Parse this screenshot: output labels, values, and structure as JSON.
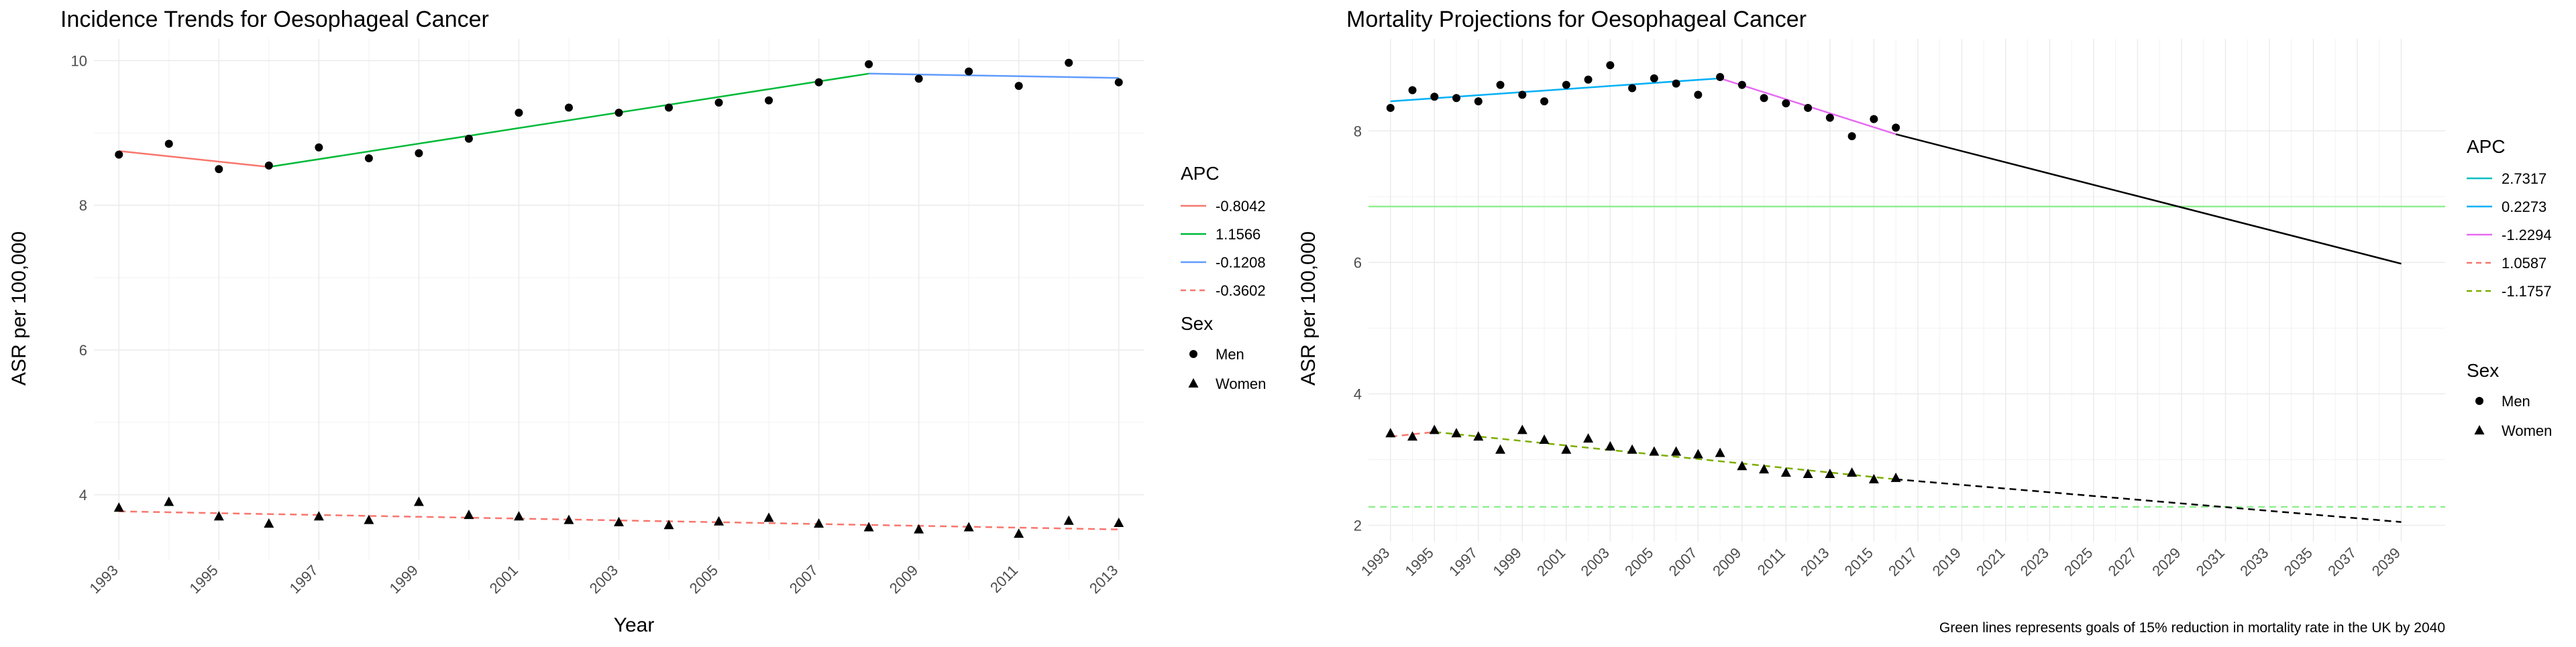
{
  "chart_data": [
    {
      "type": "scatter",
      "title": "Incidence Trends for Oesophageal Cancer",
      "xlabel": "Year",
      "ylabel": "ASR per 100,000",
      "xlim": [
        1992.5,
        2013.5
      ],
      "ylim": [
        3.1,
        10.3
      ],
      "x_ticks": [
        1993,
        1995,
        1997,
        1999,
        2001,
        2003,
        2005,
        2007,
        2009,
        2011,
        2013
      ],
      "y_ticks": [
        4,
        6,
        8,
        10
      ],
      "grid": true,
      "points": [
        {
          "sex": "Men",
          "shape": "circle",
          "x": [
            1993,
            1994,
            1995,
            1996,
            1997,
            1998,
            1999,
            2000,
            2001,
            2002,
            2003,
            2004,
            2005,
            2006,
            2007,
            2008,
            2009,
            2010,
            2011,
            2012,
            2013
          ],
          "y": [
            8.7,
            8.85,
            8.5,
            8.55,
            8.8,
            8.65,
            8.72,
            8.92,
            9.28,
            9.35,
            9.28,
            9.35,
            9.42,
            9.45,
            9.7,
            9.95,
            9.75,
            9.85,
            9.65,
            9.97,
            9.7
          ]
        },
        {
          "sex": "Women",
          "shape": "triangle",
          "x": [
            1993,
            1994,
            1995,
            1996,
            1997,
            1998,
            1999,
            2000,
            2001,
            2002,
            2003,
            2004,
            2005,
            2006,
            2007,
            2008,
            2009,
            2010,
            2011,
            2012,
            2013
          ],
          "y": [
            3.82,
            3.9,
            3.7,
            3.6,
            3.7,
            3.65,
            3.9,
            3.72,
            3.7,
            3.65,
            3.62,
            3.58,
            3.63,
            3.68,
            3.6,
            3.55,
            3.52,
            3.55,
            3.46,
            3.64,
            3.61
          ]
        }
      ],
      "trend_lines": [
        {
          "apc": "-0.8042",
          "color": "#F8766D",
          "dash": false,
          "x": [
            1993,
            1996
          ],
          "y": [
            8.75,
            8.53
          ]
        },
        {
          "apc": "1.1566",
          "color": "#00BA38",
          "dash": false,
          "x": [
            1996,
            2008
          ],
          "y": [
            8.53,
            9.82
          ]
        },
        {
          "apc": "-0.1208",
          "color": "#619CFF",
          "dash": false,
          "x": [
            2008,
            2013
          ],
          "y": [
            9.82,
            9.76
          ]
        },
        {
          "apc": "-0.3602",
          "color": "#F8766D",
          "dash": true,
          "x": [
            1993,
            2013
          ],
          "y": [
            3.77,
            3.52
          ]
        }
      ],
      "legend": {
        "apc_title": "APC",
        "apc_items": [
          {
            "label": "-0.8042",
            "color": "#F8766D",
            "dash": false
          },
          {
            "label": "1.1566",
            "color": "#00BA38",
            "dash": false
          },
          {
            "label": "-0.1208",
            "color": "#619CFF",
            "dash": false
          },
          {
            "label": "-0.3602",
            "color": "#F8766D",
            "dash": true
          }
        ],
        "sex_title": "Sex",
        "sex_items": [
          {
            "label": "Men",
            "shape": "circle"
          },
          {
            "label": "Women",
            "shape": "triangle"
          }
        ],
        "position": "right"
      }
    },
    {
      "type": "scatter",
      "title": "Mortality Projections for Oesophageal Cancer",
      "xlabel": "Year",
      "ylabel": "ASR per 100,000",
      "xlim": [
        1992,
        2041
      ],
      "ylim": [
        1.75,
        9.4
      ],
      "x_ticks": [
        1993,
        1995,
        1997,
        1999,
        2001,
        2003,
        2005,
        2007,
        2009,
        2011,
        2013,
        2015,
        2017,
        2019,
        2021,
        2023,
        2025,
        2027,
        2029,
        2031,
        2033,
        2035,
        2037,
        2039
      ],
      "y_ticks": [
        2,
        4,
        6,
        8
      ],
      "grid": true,
      "points": [
        {
          "sex": "Men",
          "shape": "circle",
          "x": [
            1993,
            1994,
            1995,
            1996,
            1997,
            1998,
            1999,
            2000,
            2001,
            2002,
            2003,
            2004,
            2005,
            2006,
            2007,
            2008,
            2009,
            2010,
            2011,
            2012,
            2013,
            2014,
            2015,
            2016
          ],
          "y": [
            8.35,
            8.62,
            8.52,
            8.5,
            8.45,
            8.7,
            8.55,
            8.45,
            8.7,
            8.78,
            9.0,
            8.65,
            8.8,
            8.72,
            8.55,
            8.82,
            8.7,
            8.5,
            8.42,
            8.35,
            8.2,
            7.92,
            8.18,
            8.05
          ]
        },
        {
          "sex": "Women",
          "shape": "triangle",
          "x": [
            1993,
            1994,
            1995,
            1996,
            1997,
            1998,
            1999,
            2000,
            2001,
            2002,
            2003,
            2004,
            2005,
            2006,
            2007,
            2008,
            2009,
            2010,
            2011,
            2012,
            2013,
            2014,
            2015,
            2016
          ],
          "y": [
            3.4,
            3.35,
            3.45,
            3.4,
            3.35,
            3.15,
            3.45,
            3.3,
            3.15,
            3.32,
            3.2,
            3.15,
            3.12,
            3.12,
            3.08,
            3.1,
            2.9,
            2.85,
            2.8,
            2.78,
            2.78,
            2.8,
            2.7,
            2.72
          ]
        }
      ],
      "trend_lines": [
        {
          "apc": "2.7317",
          "color": "#00BFC4",
          "dash": false,
          "x": [
            1993,
            1993
          ],
          "y": [
            8.45,
            8.45
          ]
        },
        {
          "apc": "0.2273",
          "color": "#00B0F6",
          "dash": false,
          "x": [
            1993,
            2008
          ],
          "y": [
            8.45,
            8.8
          ]
        },
        {
          "apc": "-1.2294",
          "color": "#E76BF3",
          "dash": false,
          "x": [
            2008,
            2016
          ],
          "y": [
            8.8,
            7.95
          ]
        },
        {
          "apc": "1.0587",
          "color": "#F8766D",
          "dash": true,
          "x": [
            1993,
            1995
          ],
          "y": [
            3.35,
            3.42
          ]
        },
        {
          "apc": "-1.1757",
          "color": "#7CAE00",
          "dash": true,
          "x": [
            1995,
            2016
          ],
          "y": [
            3.42,
            2.7
          ]
        }
      ],
      "projections": [
        {
          "sex": "Men",
          "color": "#000000",
          "dash": false,
          "x": [
            2016,
            2039
          ],
          "y": [
            7.95,
            5.98
          ]
        },
        {
          "sex": "Women",
          "color": "#000000",
          "dash": true,
          "x": [
            2016,
            2039
          ],
          "y": [
            2.7,
            2.05
          ]
        }
      ],
      "goal_lines": [
        {
          "sex": "Men",
          "color": "#90EE90",
          "dash": false,
          "y": 6.85
        },
        {
          "sex": "Women",
          "color": "#90EE90",
          "dash": true,
          "y": 2.28
        }
      ],
      "legend": {
        "apc_title": "APC",
        "apc_items": [
          {
            "label": "2.7317",
            "color": "#00BFC4",
            "dash": false
          },
          {
            "label": "0.2273",
            "color": "#00B0F6",
            "dash": false
          },
          {
            "label": "-1.2294",
            "color": "#E76BF3",
            "dash": false
          },
          {
            "label": "1.0587",
            "color": "#F8766D",
            "dash": true
          },
          {
            "label": "-1.1757",
            "color": "#7CAE00",
            "dash": true
          }
        ],
        "sex_title": "Sex",
        "sex_items": [
          {
            "label": "Men",
            "shape": "circle"
          },
          {
            "label": "Women",
            "shape": "triangle"
          }
        ],
        "position": "right"
      },
      "caption": "Green lines represents goals of 15% reduction in mortality rate in the UK by 2040"
    }
  ]
}
